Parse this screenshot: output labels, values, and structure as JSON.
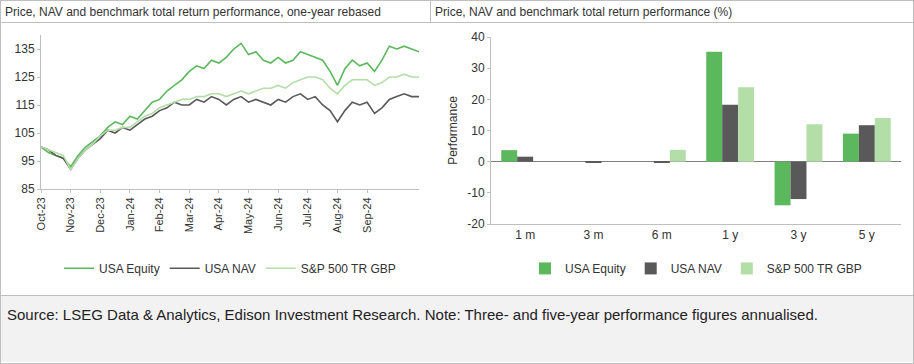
{
  "chart_data": [
    {
      "type": "line",
      "title": "Price, NAV and benchmark total return performance, one-year rebased",
      "categories": [
        "Oct-23",
        null,
        null,
        null,
        "Nov-23",
        null,
        null,
        null,
        "Dec-23",
        null,
        null,
        null,
        "Jan-24",
        null,
        null,
        null,
        "Feb-24",
        null,
        null,
        null,
        "Mar-24",
        null,
        null,
        null,
        "Apr-24",
        null,
        null,
        null,
        "May-24",
        null,
        null,
        null,
        "Jun-24",
        null,
        null,
        null,
        "Jul-24",
        null,
        null,
        null,
        "Aug-24",
        null,
        null,
        null,
        "Sep-24",
        null,
        null,
        null,
        null,
        null,
        null,
        null
      ],
      "series": [
        {
          "name": "USA Equity",
          "color": "#5cb85c",
          "values": [
            100,
            98,
            97,
            96,
            93,
            97,
            100,
            102,
            104,
            107,
            109,
            108,
            111,
            110,
            113,
            116,
            117,
            120,
            122,
            124,
            127,
            129,
            128,
            131,
            130,
            132,
            135,
            137,
            133,
            134,
            131,
            130,
            132,
            130,
            131,
            134,
            133,
            132,
            131,
            127,
            122,
            128,
            131,
            129,
            130,
            127,
            131,
            136,
            135,
            136,
            135,
            134
          ]
        },
        {
          "name": "USA NAV",
          "color": "#595959",
          "values": [
            100,
            99,
            97,
            96,
            92,
            96,
            99,
            101,
            103,
            106,
            105,
            107,
            106,
            108,
            110,
            111,
            113,
            114,
            116,
            115,
            115,
            117,
            116,
            118,
            117,
            115,
            117,
            118,
            116,
            117,
            116,
            115,
            117,
            116,
            118,
            119,
            117,
            118,
            115,
            113,
            109,
            113,
            116,
            115,
            116,
            112,
            114,
            117,
            118,
            119,
            118,
            118
          ]
        },
        {
          "name": "S&P 500 TR GBP",
          "color": "#b3dea8",
          "values": [
            100,
            99,
            98,
            97,
            92,
            96,
            99,
            101,
            104,
            106,
            106,
            107,
            107,
            109,
            111,
            112,
            114,
            115,
            116,
            117,
            117,
            118,
            118,
            119,
            119,
            118,
            119,
            120,
            119,
            120,
            121,
            121,
            122,
            121,
            123,
            124,
            125,
            125,
            124,
            121,
            119,
            122,
            124,
            124,
            124,
            122,
            123,
            125,
            125,
            126,
            125,
            125
          ]
        }
      ],
      "ylim": [
        85,
        140
      ],
      "yticks": [
        85,
        95,
        105,
        115,
        125,
        135
      ],
      "grid": false,
      "legend": "bottom"
    },
    {
      "type": "bar",
      "title": "Price, NAV and benchmark total return performance (%)",
      "y_label": "Performance",
      "categories": [
        "1 m",
        "3 m",
        "6 m",
        "1 y",
        "3 y",
        "5 y"
      ],
      "series": [
        {
          "name": "USA Equity",
          "color": "#5cb85c",
          "values": [
            3.7,
            0,
            0,
            35.3,
            -14,
            9
          ]
        },
        {
          "name": "USA NAV",
          "color": "#595959",
          "values": [
            1.6,
            -0.3,
            -0.3,
            18.3,
            -12,
            11.7
          ]
        },
        {
          "name": "S&P 500 TR GBP",
          "color": "#b3dea8",
          "values": [
            0,
            0,
            3.8,
            23.9,
            12,
            14
          ]
        }
      ],
      "ylim": [
        -20,
        40
      ],
      "yticks": [
        -20,
        -10,
        0,
        10,
        20,
        30,
        40
      ],
      "grid": false,
      "legend": "bottom"
    }
  ],
  "note": "Source: LSEG Data & Analytics, Edison Investment Research. Note: Three- and five-year performance figures annualised."
}
